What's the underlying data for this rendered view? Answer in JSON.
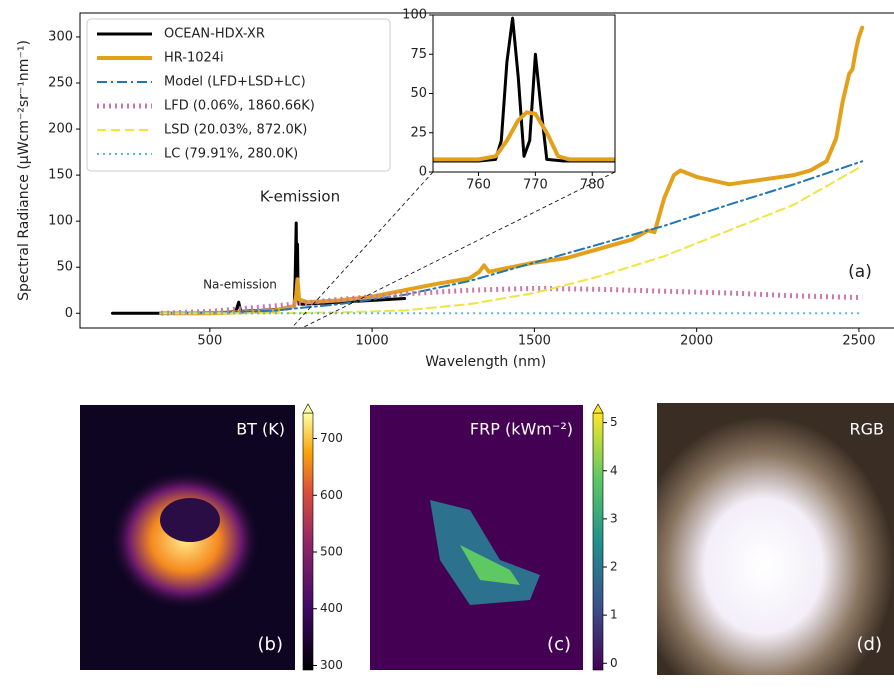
{
  "chart_data": {
    "type": "line",
    "ylabel": "Spectral Radiance (μWcm⁻²sr⁻¹nm⁻¹)",
    "xlabel": "Wavelength (nm)",
    "xlim": [
      100,
      2608
    ],
    "ylim": [
      -16,
      326
    ],
    "xticks": [
      500,
      1000,
      1500,
      2000,
      2500
    ],
    "yticks": [
      0,
      50,
      100,
      150,
      200,
      250,
      300
    ],
    "legend": "upper left",
    "annotations": [
      "K-emission",
      "Na-emission",
      "(a)"
    ],
    "series": [
      {
        "name": "OCEAN-HDX-XR",
        "color": "#000000",
        "dash": "solid",
        "linewidth": 3,
        "x": [
          200,
          300,
          400,
          500,
          550,
          580,
          589,
          595,
          650,
          700,
          740,
          760,
          763,
          766,
          768,
          770,
          772,
          775,
          790,
          850,
          900,
          1000,
          1100
        ],
        "values": [
          0,
          0,
          0,
          0.5,
          1,
          2,
          12,
          2,
          3,
          4,
          5,
          8,
          40,
          98,
          30,
          75,
          20,
          10,
          10,
          11,
          12,
          14,
          16
        ]
      },
      {
        "name": "HR-1024i",
        "color": "#e3a11b",
        "dash": "solid",
        "linewidth": 4,
        "x": [
          350,
          500,
          600,
          700,
          760,
          766,
          770,
          775,
          800,
          900,
          1000,
          1100,
          1200,
          1300,
          1330,
          1345,
          1360,
          1400,
          1500,
          1600,
          1700,
          1800,
          1850,
          1870,
          1880,
          1900,
          1930,
          1950,
          2000,
          2100,
          2200,
          2300,
          2350,
          2400,
          2430,
          2450,
          2470,
          2480,
          2490,
          2500,
          2510
        ],
        "values": [
          0,
          0,
          1,
          3,
          8,
          20,
          37,
          15,
          12,
          14,
          18,
          25,
          32,
          38,
          45,
          52,
          45,
          48,
          55,
          60,
          70,
          80,
          90,
          88,
          100,
          125,
          150,
          155,
          148,
          140,
          145,
          150,
          155,
          165,
          190,
          230,
          260,
          265,
          285,
          300,
          310
        ]
      },
      {
        "name": "Model (LFD+LSD+LC)",
        "color": "#1f77b4",
        "dash": "dashdot",
        "linewidth": 2,
        "x": [
          350,
          500,
          700,
          900,
          1100,
          1300,
          1500,
          1700,
          1900,
          2100,
          2300,
          2510
        ],
        "values": [
          0,
          0.5,
          3,
          10,
          20,
          35,
          55,
          75,
          95,
          118,
          140,
          165
        ]
      },
      {
        "name": "LFD (0.06%, 1860.66K)",
        "color": "#cc79a7",
        "dash": "dotted",
        "linewidth": 5,
        "x": [
          350,
          500,
          700,
          900,
          1100,
          1300,
          1500,
          1700,
          1900,
          2100,
          2300,
          2510
        ],
        "values": [
          0,
          2,
          8,
          15,
          21,
          25,
          27,
          26,
          24,
          22,
          19,
          17
        ]
      },
      {
        "name": "LSD (20.03%, 872.0K)",
        "color": "#f0e442",
        "dash": "dashed",
        "linewidth": 2,
        "x": [
          350,
          500,
          700,
          900,
          1100,
          1300,
          1500,
          1700,
          1900,
          2100,
          2300,
          2510
        ],
        "values": [
          0,
          0,
          0,
          1,
          3,
          10,
          22,
          40,
          62,
          90,
          118,
          160
        ]
      },
      {
        "name": "LC (79.91%, 280.0K)",
        "color": "#56b4e9",
        "dash": "dotted",
        "linewidth": 2,
        "x": [
          350,
          500,
          700,
          900,
          1100,
          1300,
          1500,
          1700,
          1900,
          2100,
          2300,
          2510
        ],
        "values": [
          0,
          0,
          0,
          0,
          0,
          0,
          0,
          0,
          0,
          0,
          0,
          0
        ]
      }
    ],
    "inset": {
      "xlim": [
        752,
        784
      ],
      "ylim": [
        0,
        100
      ],
      "xticks": [
        760,
        770,
        780
      ],
      "yticks": [
        0,
        25,
        50,
        75,
        100
      ],
      "series": [
        {
          "color": "#000000",
          "linewidth": 3,
          "x": [
            752,
            755,
            760,
            763,
            764,
            765,
            766,
            767,
            768,
            769,
            770,
            771,
            772,
            775,
            780,
            784
          ],
          "values": [
            7,
            7,
            7,
            8,
            20,
            70,
            98,
            60,
            10,
            20,
            75,
            40,
            8,
            7,
            7,
            7
          ]
        },
        {
          "color": "#e3a11b",
          "linewidth": 4,
          "x": [
            752,
            760,
            763,
            765,
            767,
            768.5,
            770,
            772,
            774,
            776,
            780,
            784
          ],
          "values": [
            8,
            8,
            10,
            20,
            33,
            38,
            37,
            25,
            10,
            8,
            8,
            8
          ]
        }
      ]
    }
  },
  "panels": [
    {
      "label": "BT (K)",
      "tag": "(b)",
      "clim": [
        292,
        745
      ],
      "cticks": [
        300,
        400,
        500,
        600,
        700
      ]
    },
    {
      "label": "FRP (kWm⁻²)",
      "tag": "(c)",
      "clim": [
        -0.14,
        5.2
      ],
      "cticks": [
        0,
        1,
        2,
        3,
        4,
        5
      ]
    },
    {
      "label": "RGB",
      "tag": "(d)"
    }
  ]
}
